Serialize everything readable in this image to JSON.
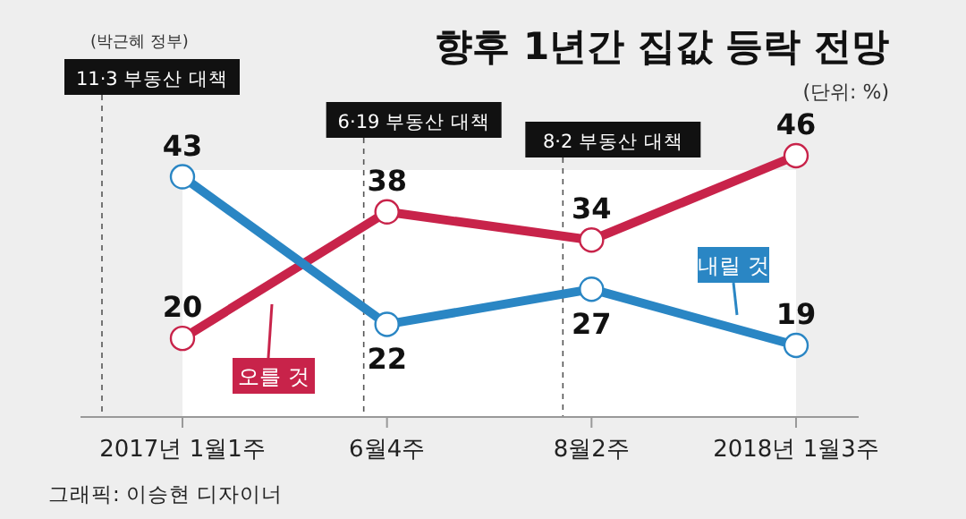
{
  "chart_data": {
    "type": "line",
    "title": "향후 1년간 집값 등락 전망",
    "subtitle": "(단위: %)",
    "categories": [
      "2017년 1월1주",
      "6월4주",
      "8월2주",
      "2018년 1월3주"
    ],
    "series": [
      {
        "name": "오를 것",
        "color": "#c8234a",
        "values": [
          20,
          38,
          34,
          46
        ]
      },
      {
        "name": "내릴 것",
        "color": "#2a86c4",
        "values": [
          43,
          22,
          27,
          19
        ]
      }
    ],
    "ref_lines": [
      {
        "axis": "x",
        "value": "2017년 1월1주",
        "label": "11·3 부동산 대책",
        "line_style": "dashed"
      },
      {
        "axis": "x",
        "value": "6월4주",
        "label": "6·19 부동산 대책",
        "line_style": "dashed"
      },
      {
        "axis": "x",
        "value": "8월2주",
        "label": "8·2 부동산 대책",
        "line_style": "dashed"
      }
    ],
    "annotations": [
      "(박근혜 정부)",
      "그래픽: 이승현 디자이너"
    ],
    "data_labels": true,
    "marker": "circle",
    "line_style": "solid",
    "legend": false
  }
}
